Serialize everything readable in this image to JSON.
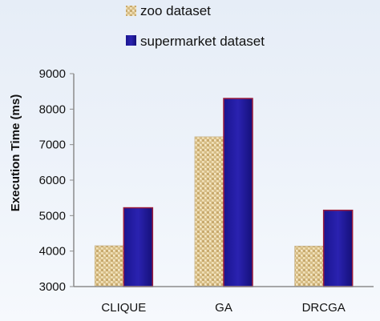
{
  "chart_data": {
    "type": "bar",
    "title": "",
    "xlabel": "",
    "ylabel": "Execution Time (ms)",
    "categories": [
      "CLIQUE",
      "GA",
      "DRCGA"
    ],
    "series": [
      {
        "name": "zoo dataset",
        "values": [
          4150,
          7220,
          4140
        ],
        "color": "#d9c08a",
        "pattern": "burlap-texture"
      },
      {
        "name": "supermarket dataset",
        "values": [
          5220,
          8300,
          5150
        ],
        "color": "#1f1a99",
        "stroke": "#9b1b3c"
      }
    ],
    "ylim": [
      3000,
      9000
    ],
    "yticks": [
      "3000",
      "4000",
      "5000",
      "6000",
      "7000",
      "8000",
      "9000"
    ],
    "grid": false,
    "legend": "top-center"
  }
}
